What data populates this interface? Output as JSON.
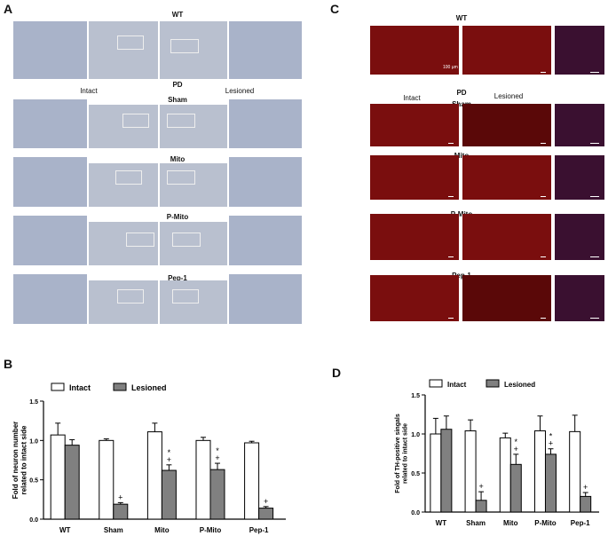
{
  "panels": {
    "A": {
      "letter": "A",
      "wt": "WT",
      "pd": "PD",
      "intact": "Intact",
      "lesioned": "Lesioned",
      "groups": [
        "Sham",
        "Mito",
        "P-Mito",
        "Pep-1"
      ]
    },
    "C": {
      "letter": "C",
      "wt": "WT",
      "pd": "PD",
      "intact": "Intact",
      "lesioned": "Lesioned",
      "scale_label": "100 µm",
      "groups": [
        "Sham",
        "Mito",
        "P-Mito",
        "Pep-1"
      ]
    }
  },
  "colors": {
    "intact": "#ffffff",
    "lesioned": "#808080"
  },
  "chart_data": [
    {
      "panel": "B",
      "type": "bar",
      "categories": [
        "WT",
        "Sham",
        "Mito",
        "P-Mito",
        "Pep-1"
      ],
      "series": [
        {
          "name": "Intact",
          "values": [
            1.07,
            1.0,
            1.11,
            1.0,
            0.97
          ],
          "errors": [
            0.15,
            0.02,
            0.11,
            0.04,
            0.02
          ]
        },
        {
          "name": "Lesioned",
          "values": [
            0.94,
            0.19,
            0.62,
            0.63,
            0.14
          ],
          "errors": [
            0.07,
            0.02,
            0.07,
            0.08,
            0.02
          ]
        }
      ],
      "ylabel": "Fold of neuron number related to intact side",
      "ylim": [
        0,
        1.5
      ],
      "yticks": [
        "0.0",
        "0.5",
        "1.0",
        "1.5"
      ],
      "annotations": [
        "+",
        "+ *",
        "+ *",
        "+"
      ],
      "legend": "top-left"
    },
    {
      "panel": "D",
      "type": "bar",
      "categories": [
        "WT",
        "Sham",
        "Mito",
        "P-Mito",
        "Pep-1"
      ],
      "series": [
        {
          "name": "Intact",
          "values": [
            1.0,
            1.04,
            0.95,
            1.04,
            1.03
          ],
          "errors": [
            0.2,
            0.14,
            0.06,
            0.19,
            0.21
          ]
        },
        {
          "name": "Lesioned",
          "values": [
            1.06,
            0.15,
            0.61,
            0.74,
            0.2
          ],
          "errors": [
            0.17,
            0.11,
            0.13,
            0.07,
            0.05
          ]
        }
      ],
      "ylabel": "Fold of TH-positive singals related to intact side",
      "ylim": [
        0,
        1.5
      ],
      "yticks": [
        "0.0",
        "0.5",
        "1.0",
        "1.5"
      ],
      "annotations": [
        "+",
        "+ *",
        "+ *",
        "+"
      ],
      "legend": "top-left"
    }
  ]
}
